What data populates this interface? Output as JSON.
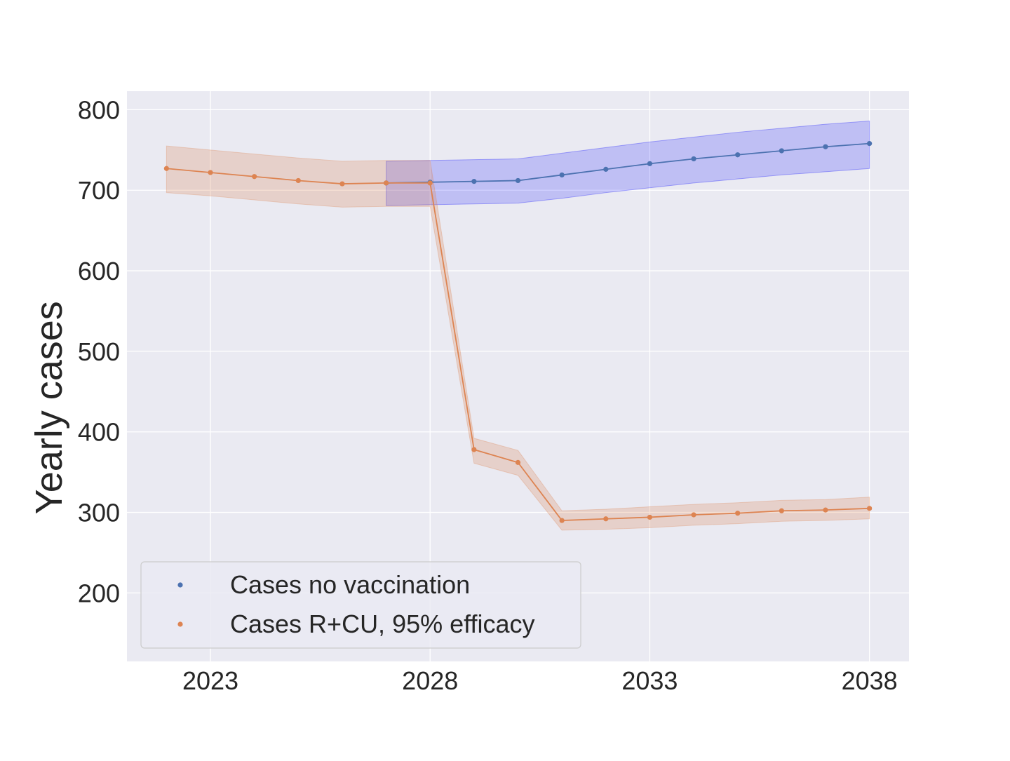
{
  "chart_data": {
    "type": "line",
    "title": "",
    "xlabel": "",
    "ylabel": "Yearly cases",
    "xlim": [
      2021.1,
      2038.9
    ],
    "ylim": [
      115,
      823
    ],
    "xticks": [
      2023,
      2028,
      2033,
      2038
    ],
    "yticks": [
      200,
      300,
      400,
      500,
      600,
      700,
      800
    ],
    "grid": true,
    "legend_position": "lower-left",
    "series": [
      {
        "name": "Cases no vaccination",
        "color": "#4c72b0",
        "band_color": "#0000ff",
        "x": [
          2027,
          2028,
          2029,
          2030,
          2031,
          2032,
          2033,
          2034,
          2035,
          2036,
          2037,
          2038
        ],
        "values": [
          709,
          710,
          711,
          712,
          719,
          726,
          733,
          739,
          744,
          749,
          754,
          758
        ],
        "lower": [
          681,
          682,
          683,
          684,
          690,
          697,
          703,
          709,
          714,
          719,
          723,
          727
        ],
        "upper": [
          736,
          737,
          738,
          739,
          746,
          753,
          760,
          766,
          772,
          777,
          782,
          786
        ]
      },
      {
        "name": "Cases R+CU, 95% efficacy",
        "color": "#dd8452",
        "band_color": "#dd8452",
        "x": [
          2022,
          2023,
          2024,
          2025,
          2026,
          2027,
          2028,
          2029,
          2030,
          2031,
          2032,
          2033,
          2034,
          2035,
          2036,
          2037,
          2038
        ],
        "values": [
          727,
          722,
          717,
          712,
          708,
          709,
          709,
          378,
          362,
          290,
          292,
          294,
          297,
          299,
          302,
          303,
          305
        ],
        "lower": [
          697,
          693,
          688,
          683,
          679,
          680,
          680,
          361,
          346,
          278,
          279,
          281,
          284,
          286,
          289,
          290,
          292
        ],
        "upper": [
          755,
          750,
          745,
          740,
          736,
          737,
          737,
          392,
          377,
          302,
          304,
          307,
          310,
          312,
          315,
          316,
          319
        ]
      }
    ]
  }
}
